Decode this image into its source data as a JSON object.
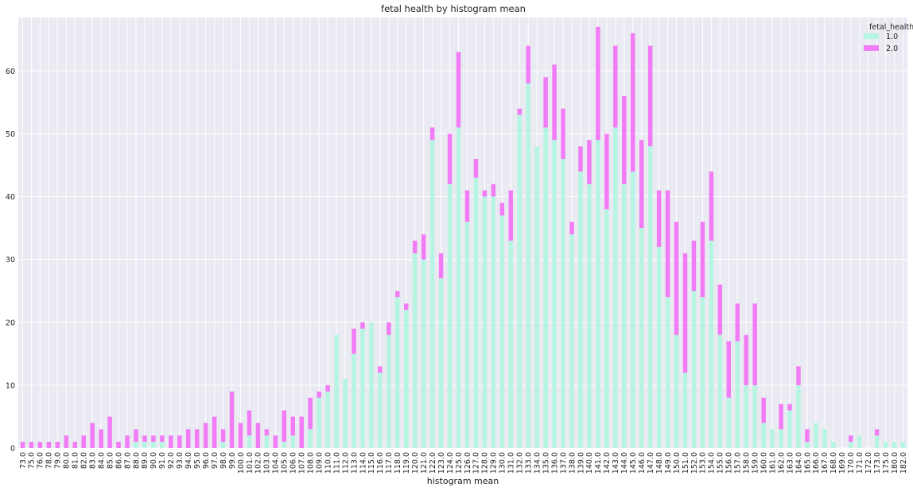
{
  "chart_data": {
    "type": "bar",
    "stacked": true,
    "title": "fetal health by histogram mean",
    "xlabel": "histogram mean",
    "ylabel": "",
    "ylim": [
      0,
      68.5
    ],
    "yticks": [
      0,
      10,
      20,
      30,
      40,
      50,
      60
    ],
    "grid": true,
    "legend": {
      "title": "fetal_health",
      "position": "top-right"
    },
    "categories": [
      "73.0",
      "75.0",
      "76.0",
      "78.0",
      "79.0",
      "80.0",
      "81.0",
      "82.0",
      "83.0",
      "84.0",
      "85.0",
      "86.0",
      "87.0",
      "88.0",
      "89.0",
      "90.0",
      "91.0",
      "92.0",
      "93.0",
      "94.0",
      "95.0",
      "96.0",
      "97.0",
      "98.0",
      "99.0",
      "100.0",
      "101.0",
      "102.0",
      "103.0",
      "104.0",
      "105.0",
      "106.0",
      "107.0",
      "108.0",
      "109.0",
      "110.0",
      "111.0",
      "112.0",
      "113.0",
      "114.0",
      "115.0",
      "116.0",
      "117.0",
      "118.0",
      "119.0",
      "120.0",
      "121.0",
      "122.0",
      "123.0",
      "124.0",
      "125.0",
      "126.0",
      "127.0",
      "128.0",
      "129.0",
      "130.0",
      "131.0",
      "132.0",
      "133.0",
      "134.0",
      "135.0",
      "136.0",
      "137.0",
      "138.0",
      "139.0",
      "140.0",
      "141.0",
      "142.0",
      "143.0",
      "144.0",
      "145.0",
      "146.0",
      "147.0",
      "148.0",
      "149.0",
      "150.0",
      "151.0",
      "152.0",
      "153.0",
      "154.0",
      "155.0",
      "156.0",
      "157.0",
      "158.0",
      "159.0",
      "160.0",
      "161.0",
      "162.0",
      "163.0",
      "164.0",
      "165.0",
      "166.0",
      "167.0",
      "168.0",
      "169.0",
      "170.0",
      "171.0",
      "172.0",
      "173.0",
      "175.0",
      "180.0",
      "182.0"
    ],
    "series": [
      {
        "name": "1.0",
        "color": "#b5f5e2",
        "values": [
          0,
          0,
          0,
          0,
          0,
          0,
          0,
          0,
          0,
          0,
          0,
          0,
          0,
          1,
          1,
          1,
          1,
          0,
          0,
          0,
          0,
          0,
          0,
          1,
          0,
          0,
          2,
          0,
          2,
          0,
          1,
          2,
          0,
          3,
          8,
          9,
          18,
          11,
          15,
          19,
          20,
          12,
          18,
          24,
          22,
          31,
          30,
          49,
          27,
          42,
          51,
          36,
          43,
          40,
          40,
          37,
          33,
          53,
          58,
          48,
          51,
          49,
          46,
          34,
          44,
          42,
          49,
          38,
          51,
          42,
          44,
          35,
          48,
          32,
          24,
          18,
          12,
          25,
          24,
          33,
          18,
          8,
          17,
          10,
          10,
          4,
          3,
          3,
          6,
          10,
          1,
          4,
          3,
          1,
          0,
          1,
          2,
          0,
          2,
          1,
          1,
          1
        ]
      },
      {
        "name": "2.0",
        "color": "#f17cf5",
        "values": [
          1,
          1,
          1,
          1,
          1,
          2,
          1,
          2,
          4,
          3,
          5,
          1,
          2,
          2,
          1,
          1,
          1,
          2,
          2,
          3,
          3,
          4,
          5,
          2,
          9,
          4,
          4,
          4,
          1,
          2,
          5,
          3,
          5,
          5,
          1,
          1,
          0,
          0,
          4,
          1,
          0,
          1,
          2,
          1,
          1,
          2,
          4,
          2,
          4,
          8,
          12,
          5,
          3,
          1,
          2,
          2,
          8,
          1,
          6,
          0,
          8,
          12,
          8,
          2,
          4,
          7,
          18,
          12,
          13,
          14,
          22,
          14,
          16,
          9,
          17,
          18,
          19,
          8,
          12,
          11,
          8,
          9,
          6,
          8,
          13,
          4,
          0,
          4,
          1,
          3,
          2,
          0,
          0,
          0,
          0,
          1,
          0,
          0,
          1,
          0,
          0,
          0
        ]
      }
    ]
  }
}
